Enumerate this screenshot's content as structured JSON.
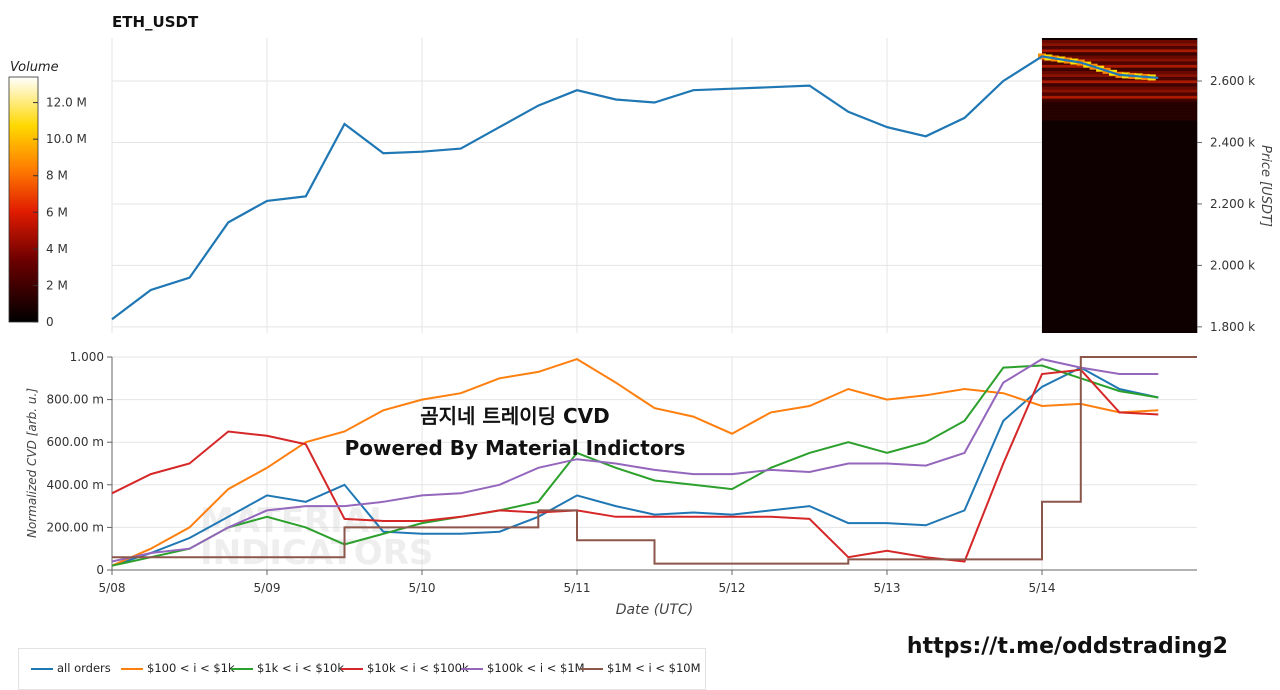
{
  "chart_data": [
    {
      "type": "line",
      "title": "ETH_USDT",
      "ylabel": "Price [USDT]",
      "ylim": [
        1780,
        2740
      ],
      "y_ticks": [
        "1.800 k",
        "2.000 k",
        "2.200 k",
        "2.400 k",
        "2.600 k"
      ],
      "y_tick_values": [
        1800,
        2000,
        2200,
        2400,
        2600
      ],
      "x_range": [
        "2024-05-08T00:00",
        "2024-05-14T23:59"
      ],
      "grid": true,
      "series": [
        {
          "color": "#1f77b4",
          "x": [
            "05-08 00:00",
            "05-08 06:00",
            "05-08 12:00",
            "05-08 18:00",
            "05-09 00:00",
            "05-09 06:00",
            "05-09 12:00",
            "05-09 18:00",
            "05-10 00:00",
            "05-10 06:00",
            "05-10 12:00",
            "05-10 18:00",
            "05-11 00:00",
            "05-11 06:00",
            "05-11 12:00",
            "05-11 18:00",
            "05-12 00:00",
            "05-12 06:00",
            "05-12 12:00",
            "05-12 18:00",
            "05-13 00:00",
            "05-13 06:00",
            "05-13 12:00",
            "05-13 18:00",
            "05-14 00:00",
            "05-14 06:00",
            "05-14 12:00",
            "05-14 18:00"
          ],
          "values": [
            1825,
            1920,
            1960,
            2140,
            2210,
            2225,
            2460,
            2365,
            2370,
            2380,
            2450,
            2520,
            2570,
            2540,
            2530,
            2570,
            2575,
            2580,
            2585,
            2500,
            2450,
            2420,
            2480,
            2600,
            2680,
            2660,
            2620,
            2610
          ]
        }
      ],
      "heatmap": {
        "label": "Volume",
        "colorbar_ticks": [
          "0",
          "2 M",
          "4 M",
          "6 M",
          "8 M",
          "10.0 M",
          "12.0 M"
        ],
        "colorbar_values": [
          0,
          2,
          4,
          6,
          8,
          10,
          12
        ],
        "x_start": "05-14 00:00",
        "x_end": "05-14 23:59"
      }
    },
    {
      "type": "line",
      "xlabel": "Date (UTC)",
      "ylabel": "Normalized CVD [arb. u.]",
      "ylim": [
        0,
        1
      ],
      "y_ticks": [
        "0",
        "200.00 m",
        "400.00 m",
        "600.00 m",
        "800.00 m",
        "1.000"
      ],
      "y_tick_values": [
        0,
        0.2,
        0.4,
        0.6,
        0.8,
        1.0
      ],
      "x_ticks": [
        "5/08",
        "5/09",
        "5/10",
        "5/11",
        "5/12",
        "5/13",
        "5/14"
      ],
      "grid": true,
      "legend_position": "bottom-left",
      "x": [
        "05-08 00:00",
        "05-08 06:00",
        "05-08 12:00",
        "05-08 18:00",
        "05-09 00:00",
        "05-09 06:00",
        "05-09 12:00",
        "05-09 18:00",
        "05-10 00:00",
        "05-10 06:00",
        "05-10 12:00",
        "05-10 18:00",
        "05-11 00:00",
        "05-11 06:00",
        "05-11 12:00",
        "05-11 18:00",
        "05-12 00:00",
        "05-12 06:00",
        "05-12 12:00",
        "05-12 18:00",
        "05-13 00:00",
        "05-13 06:00",
        "05-13 12:00",
        "05-13 18:00",
        "05-14 00:00",
        "05-14 06:00",
        "05-14 12:00",
        "05-14 18:00"
      ],
      "series": [
        {
          "name": "all orders",
          "color": "#1f77b4",
          "values": [
            0.02,
            0.08,
            0.15,
            0.25,
            0.35,
            0.32,
            0.4,
            0.18,
            0.17,
            0.17,
            0.18,
            0.25,
            0.35,
            0.3,
            0.26,
            0.27,
            0.26,
            0.28,
            0.3,
            0.22,
            0.22,
            0.21,
            0.28,
            0.7,
            0.86,
            0.95,
            0.85,
            0.81
          ]
        },
        {
          "name": "$100 < i < $1k",
          "color": "#ff7f0e",
          "values": [
            0.02,
            0.1,
            0.2,
            0.38,
            0.48,
            0.6,
            0.65,
            0.75,
            0.8,
            0.83,
            0.9,
            0.93,
            0.99,
            0.88,
            0.76,
            0.72,
            0.64,
            0.74,
            0.77,
            0.85,
            0.8,
            0.82,
            0.85,
            0.83,
            0.77,
            0.78,
            0.74,
            0.75
          ]
        },
        {
          "name": "$1k < i < $10k",
          "color": "#2ca02c",
          "values": [
            0.02,
            0.06,
            0.1,
            0.2,
            0.25,
            0.2,
            0.12,
            0.17,
            0.22,
            0.25,
            0.28,
            0.32,
            0.55,
            0.48,
            0.42,
            0.4,
            0.38,
            0.48,
            0.55,
            0.6,
            0.55,
            0.6,
            0.7,
            0.95,
            0.96,
            0.9,
            0.84,
            0.81
          ]
        },
        {
          "name": "$10k < i < $100k",
          "color": "#d62728",
          "values": [
            0.36,
            0.45,
            0.5,
            0.65,
            0.63,
            0.59,
            0.24,
            0.23,
            0.23,
            0.25,
            0.28,
            0.27,
            0.28,
            0.25,
            0.25,
            0.25,
            0.25,
            0.25,
            0.24,
            0.06,
            0.09,
            0.06,
            0.04,
            0.5,
            0.92,
            0.94,
            0.74,
            0.73
          ]
        },
        {
          "name": "$100k < i < $1M",
          "color": "#9467bd",
          "values": [
            0.04,
            0.08,
            0.1,
            0.2,
            0.28,
            0.3,
            0.3,
            0.32,
            0.35,
            0.36,
            0.4,
            0.48,
            0.52,
            0.5,
            0.47,
            0.45,
            0.45,
            0.47,
            0.46,
            0.5,
            0.5,
            0.49,
            0.55,
            0.88,
            0.99,
            0.95,
            0.92,
            0.92
          ]
        },
        {
          "name": "$1M < i < $10M",
          "color": "#8c564b",
          "values": [
            0.06,
            0.06,
            0.06,
            0.06,
            0.06,
            0.06,
            0.2,
            0.2,
            0.2,
            0.2,
            0.2,
            0.28,
            0.14,
            0.14,
            0.03,
            0.03,
            0.03,
            0.03,
            0.03,
            0.05,
            0.05,
            0.05,
            0.05,
            0.05,
            0.32,
            1.0,
            1.0,
            1.0
          ]
        }
      ]
    }
  ],
  "overlay": {
    "title": "곰지네 트레이딩 CVD",
    "subtitle": "Powered By Material Indictors",
    "url": "https://t.me/oddstrading2",
    "watermark": "MATERIAL INDICATORS"
  }
}
